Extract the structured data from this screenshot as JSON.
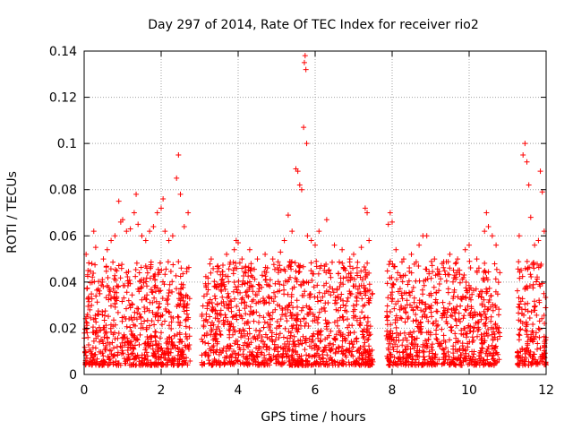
{
  "chart_data": {
    "type": "scatter",
    "title": "Day 297 of 2014, Rate Of TEC Index for receiver rio2",
    "xlabel": "GPS time / hours",
    "ylabel": "ROTI / TECUs",
    "xlim": [
      0,
      12
    ],
    "ylim": [
      0,
      0.14
    ],
    "xticks": [
      0,
      2,
      4,
      6,
      8,
      10,
      12
    ],
    "yticks": [
      0,
      0.02,
      0.04,
      0.06,
      0.08,
      0.1,
      0.12,
      0.14
    ],
    "xtick_labels": [
      "0",
      "2",
      "4",
      "6",
      "8",
      "10",
      "12"
    ],
    "ytick_labels": [
      "0",
      "0.02",
      "0.04",
      "0.06",
      "0.08",
      "0.1",
      "0.12",
      "0.14"
    ],
    "grid": true,
    "marker": "+",
    "color": "#ff0000",
    "series": [
      {
        "name": "ROTI",
        "points": [
          [
            0.05,
            0.052
          ],
          [
            0.1,
            0.045
          ],
          [
            0.2,
            0.048
          ],
          [
            0.25,
            0.062
          ],
          [
            0.3,
            0.055
          ],
          [
            0.5,
            0.05
          ],
          [
            0.6,
            0.054
          ],
          [
            0.7,
            0.058
          ],
          [
            0.8,
            0.06
          ],
          [
            0.9,
            0.075
          ],
          [
            0.95,
            0.066
          ],
          [
            1.0,
            0.067
          ],
          [
            1.1,
            0.062
          ],
          [
            1.2,
            0.063
          ],
          [
            1.3,
            0.07
          ],
          [
            1.35,
            0.078
          ],
          [
            1.4,
            0.065
          ],
          [
            1.5,
            0.06
          ],
          [
            1.6,
            0.058
          ],
          [
            1.7,
            0.062
          ],
          [
            1.8,
            0.064
          ],
          [
            1.9,
            0.07
          ],
          [
            2.0,
            0.072
          ],
          [
            2.05,
            0.076
          ],
          [
            2.1,
            0.062
          ],
          [
            2.2,
            0.058
          ],
          [
            2.3,
            0.06
          ],
          [
            2.4,
            0.085
          ],
          [
            2.45,
            0.095
          ],
          [
            2.5,
            0.078
          ],
          [
            2.6,
            0.064
          ],
          [
            2.7,
            0.07
          ],
          [
            3.3,
            0.05
          ],
          [
            3.5,
            0.046
          ],
          [
            3.7,
            0.052
          ],
          [
            3.9,
            0.054
          ],
          [
            3.95,
            0.058
          ],
          [
            4.0,
            0.057
          ],
          [
            4.1,
            0.05
          ],
          [
            4.3,
            0.054
          ],
          [
            4.5,
            0.05
          ],
          [
            4.7,
            0.052
          ],
          [
            4.9,
            0.05
          ],
          [
            5.1,
            0.053
          ],
          [
            5.2,
            0.058
          ],
          [
            5.3,
            0.069
          ],
          [
            5.4,
            0.062
          ],
          [
            5.5,
            0.089
          ],
          [
            5.55,
            0.088
          ],
          [
            5.6,
            0.082
          ],
          [
            5.65,
            0.08
          ],
          [
            5.7,
            0.107
          ],
          [
            5.72,
            0.135
          ],
          [
            5.74,
            0.138
          ],
          [
            5.76,
            0.132
          ],
          [
            5.78,
            0.1
          ],
          [
            5.8,
            0.06
          ],
          [
            5.9,
            0.058
          ],
          [
            6.0,
            0.056
          ],
          [
            6.1,
            0.062
          ],
          [
            6.3,
            0.067
          ],
          [
            6.5,
            0.056
          ],
          [
            6.7,
            0.054
          ],
          [
            6.9,
            0.05
          ],
          [
            7.0,
            0.052
          ],
          [
            7.2,
            0.055
          ],
          [
            7.3,
            0.072
          ],
          [
            7.35,
            0.07
          ],
          [
            7.4,
            0.058
          ],
          [
            7.9,
            0.065
          ],
          [
            7.95,
            0.07
          ],
          [
            8.0,
            0.066
          ],
          [
            8.1,
            0.054
          ],
          [
            8.3,
            0.05
          ],
          [
            8.5,
            0.052
          ],
          [
            8.7,
            0.056
          ],
          [
            8.8,
            0.06
          ],
          [
            8.9,
            0.06
          ],
          [
            9.1,
            0.05
          ],
          [
            9.3,
            0.048
          ],
          [
            9.5,
            0.052
          ],
          [
            9.7,
            0.05
          ],
          [
            9.9,
            0.054
          ],
          [
            10.0,
            0.056
          ],
          [
            10.2,
            0.05
          ],
          [
            10.4,
            0.062
          ],
          [
            10.45,
            0.07
          ],
          [
            10.5,
            0.064
          ],
          [
            10.6,
            0.06
          ],
          [
            10.7,
            0.056
          ],
          [
            11.3,
            0.06
          ],
          [
            11.4,
            0.095
          ],
          [
            11.45,
            0.1
          ],
          [
            11.5,
            0.092
          ],
          [
            11.55,
            0.082
          ],
          [
            11.6,
            0.068
          ],
          [
            11.7,
            0.056
          ],
          [
            11.8,
            0.058
          ],
          [
            11.85,
            0.088
          ],
          [
            11.9,
            0.079
          ],
          [
            11.95,
            0.062
          ]
        ]
      }
    ]
  }
}
